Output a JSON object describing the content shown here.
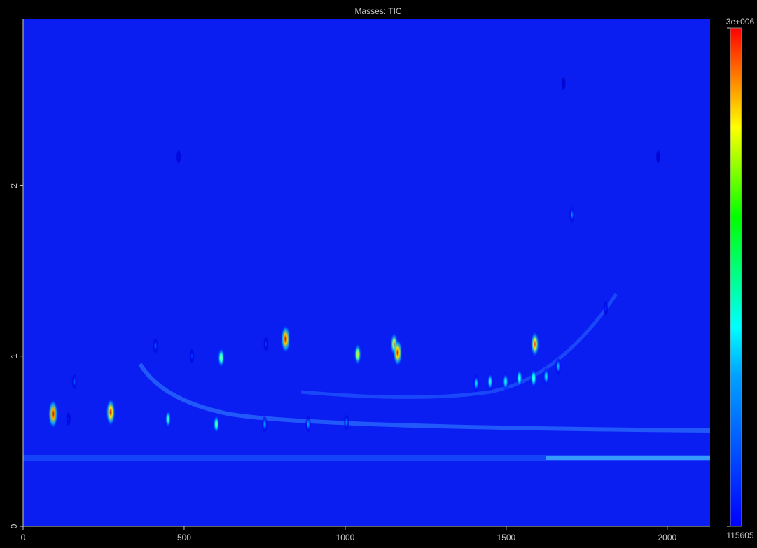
{
  "chart_data": {
    "type": "heatmap",
    "title": "Masses: TIC",
    "xlim": [
      0,
      2133
    ],
    "ylim": [
      0,
      2.98
    ],
    "xticks": [
      0,
      500,
      1000,
      1500,
      2000
    ],
    "yticks": [
      0,
      1,
      2
    ],
    "colorbar": {
      "lim": [
        115605,
        3000000
      ],
      "ticks": [
        115605,
        {
          "value": 3000000,
          "label": "3e+006"
        }
      ]
    },
    "peaks": {
      "x": [
        93,
        272,
        450,
        600,
        815,
        1039,
        1152,
        1163,
        1589,
        615,
        1541,
        1450,
        1498,
        1407,
        1585,
        1624,
        1661,
        1704,
        750,
        885,
        1004,
        159,
        411,
        524,
        754,
        1809,
        483,
        1972,
        1678,
        141
      ],
      "y": [
        0.66,
        0.67,
        0.63,
        0.6,
        1.1,
        1.01,
        1.07,
        1.02,
        1.07,
        0.99,
        0.87,
        0.85,
        0.85,
        0.84,
        0.87,
        0.88,
        0.94,
        1.83,
        0.6,
        0.6,
        0.61,
        0.85,
        1.06,
        1.0,
        1.07,
        1.28,
        2.17,
        2.17,
        2.6,
        0.63
      ],
      "intensity": [
        3000000,
        2800000,
        1500000,
        1600000,
        2900000,
        2000000,
        2200000,
        2800000,
        2500000,
        1800000,
        1500000,
        1400000,
        1400000,
        1200000,
        1600000,
        1300000,
        1100000,
        900000,
        1000000,
        1000000,
        900000,
        800000,
        800000,
        700000,
        700000,
        700000,
        600000,
        500000,
        500000,
        600000
      ]
    }
  }
}
